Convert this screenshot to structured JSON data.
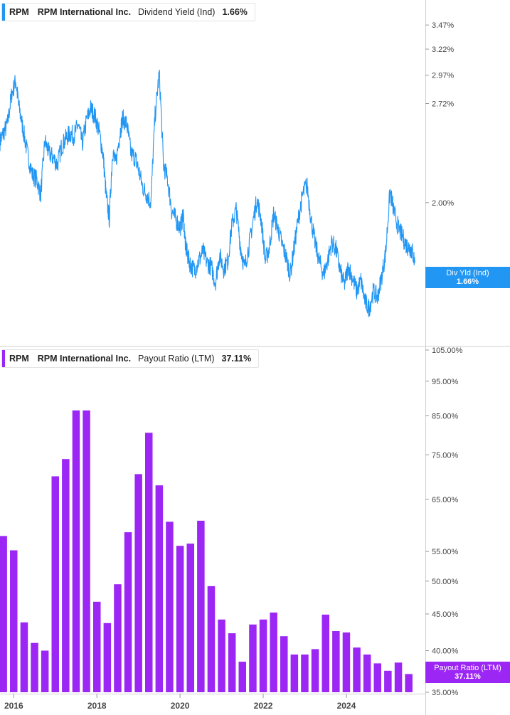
{
  "colors": {
    "yield_line": "#2196f3",
    "payout_bar": "#9c27f5",
    "axis": "#cfcfcf"
  },
  "legend_top": {
    "ticker": "RPM",
    "company": "RPM International Inc.",
    "metric": "Dividend Yield (Ind)",
    "value": "1.66%"
  },
  "legend_bottom": {
    "ticker": "RPM",
    "company": "RPM International Inc.",
    "metric": "Payout Ratio (LTM)",
    "value": "37.11%"
  },
  "tag_top": {
    "label": "Div Yld (Ind)",
    "value": "1.66%"
  },
  "tag_bottom": {
    "label": "Payout Ratio (LTM)",
    "value": "37.11%"
  },
  "chart_data": [
    {
      "type": "line",
      "series": [
        {
          "name": "Dividend Yield (Ind)"
        }
      ],
      "y_scale": "log",
      "ylim": [
        1.3,
        3.75
      ],
      "x_range": [
        2015.67,
        2025.9
      ],
      "y_ticks": [
        "3.47%",
        "3.22%",
        "2.97%",
        "2.72%",
        "2.00%"
      ],
      "y_tick_values": [
        3.47,
        3.22,
        2.97,
        2.72,
        2.0
      ],
      "x": [
        2015.67,
        2015.75,
        2015.85,
        2015.95,
        2016.05,
        2016.12,
        2016.22,
        2016.33,
        2016.45,
        2016.55,
        2016.65,
        2016.75,
        2016.85,
        2016.95,
        2017.05,
        2017.15,
        2017.25,
        2017.35,
        2017.45,
        2017.55,
        2017.65,
        2017.75,
        2017.85,
        2017.95,
        2018.05,
        2018.15,
        2018.22,
        2018.3,
        2018.38,
        2018.45,
        2018.55,
        2018.62,
        2018.72,
        2018.82,
        2018.92,
        2019.0,
        2019.1,
        2019.2,
        2019.3,
        2019.4,
        2019.5,
        2019.6,
        2019.7,
        2019.8,
        2019.9,
        2020.0,
        2020.08,
        2020.13,
        2020.18,
        2020.25,
        2020.35,
        2020.45,
        2020.55,
        2020.65,
        2020.75,
        2020.85,
        2020.95,
        2021.05,
        2021.15,
        2021.25,
        2021.35,
        2021.45,
        2021.55,
        2021.65,
        2021.75,
        2021.85,
        2021.95,
        2022.05,
        2022.15,
        2022.25,
        2022.35,
        2022.45,
        2022.55,
        2022.65,
        2022.75,
        2022.85,
        2022.95,
        2023.05,
        2023.15,
        2023.25,
        2023.35,
        2023.45,
        2023.55,
        2023.65,
        2023.75,
        2023.85,
        2023.95,
        2024.05,
        2024.15,
        2024.25,
        2024.35,
        2024.45,
        2024.55,
        2024.65,
        2024.75,
        2024.85,
        2024.95,
        2025.05,
        2025.15,
        2025.25,
        2025.35,
        2025.45,
        2025.52,
        2025.58,
        2025.65
      ],
      "values": [
        2.42,
        2.48,
        2.55,
        2.8,
        2.92,
        2.7,
        2.52,
        2.33,
        2.18,
        2.15,
        2.05,
        2.42,
        2.33,
        2.3,
        2.25,
        2.38,
        2.44,
        2.48,
        2.46,
        2.55,
        2.4,
        2.58,
        2.68,
        2.62,
        2.5,
        2.32,
        2.05,
        1.9,
        2.35,
        2.25,
        2.47,
        2.6,
        2.55,
        2.33,
        2.3,
        2.22,
        2.1,
        2.05,
        2.0,
        2.62,
        2.99,
        2.25,
        2.15,
        1.95,
        1.9,
        1.85,
        1.92,
        1.75,
        1.7,
        1.65,
        1.62,
        1.67,
        1.72,
        1.66,
        1.64,
        1.56,
        1.7,
        1.63,
        1.67,
        1.87,
        1.96,
        1.75,
        1.63,
        1.74,
        1.88,
        2.02,
        1.9,
        1.67,
        1.74,
        1.93,
        1.85,
        1.76,
        1.69,
        1.6,
        1.75,
        1.91,
        2.05,
        2.12,
        1.9,
        1.76,
        1.67,
        1.6,
        1.67,
        1.77,
        1.73,
        1.62,
        1.55,
        1.64,
        1.58,
        1.52,
        1.57,
        1.47,
        1.44,
        1.52,
        1.49,
        1.59,
        1.72,
        2.07,
        1.94,
        1.85,
        1.8,
        1.75,
        1.74,
        1.72,
        1.66
      ]
    },
    {
      "type": "bar",
      "series": [
        {
          "name": "Payout Ratio (LTM)"
        }
      ],
      "y_scale": "log",
      "ylim": [
        35,
        105
      ],
      "x_range": [
        2015.67,
        2025.9
      ],
      "y_ticks": [
        "105.00%",
        "95.00%",
        "85.00%",
        "75.00%",
        "65.00%",
        "55.00%",
        "50.00%",
        "45.00%",
        "40.00%",
        "35.00%"
      ],
      "y_tick_values": [
        105,
        95,
        85,
        75,
        65,
        55,
        50,
        45,
        40,
        35
      ],
      "x": [
        2015.75,
        2016.0,
        2016.25,
        2016.5,
        2016.75,
        2017.0,
        2017.25,
        2017.5,
        2017.75,
        2018.0,
        2018.25,
        2018.5,
        2018.75,
        2019.0,
        2019.25,
        2019.5,
        2019.75,
        2020.0,
        2020.25,
        2020.5,
        2020.75,
        2021.0,
        2021.25,
        2021.5,
        2021.75,
        2022.0,
        2022.25,
        2022.5,
        2022.75,
        2023.0,
        2023.25,
        2023.5,
        2023.75,
        2024.0,
        2024.25,
        2024.5,
        2024.75,
        2025.0,
        2025.25,
        2025.5
      ],
      "values": [
        57.8,
        55.2,
        43.8,
        41.0,
        40.0,
        70.0,
        74.0,
        86.5,
        86.5,
        46.8,
        43.7,
        49.5,
        58.5,
        70.5,
        80.5,
        68.0,
        60.5,
        56.0,
        56.4,
        60.7,
        49.2,
        44.2,
        42.3,
        38.6,
        43.5,
        44.2,
        45.2,
        41.9,
        39.5,
        39.5,
        40.2,
        44.9,
        42.6,
        42.4,
        40.4,
        39.5,
        38.4,
        37.5,
        38.5,
        37.11
      ],
      "xtick_labels": [
        "2016",
        "2018",
        "2020",
        "2022",
        "2024"
      ],
      "xtick_values": [
        2016,
        2018,
        2020,
        2022,
        2024
      ]
    }
  ]
}
